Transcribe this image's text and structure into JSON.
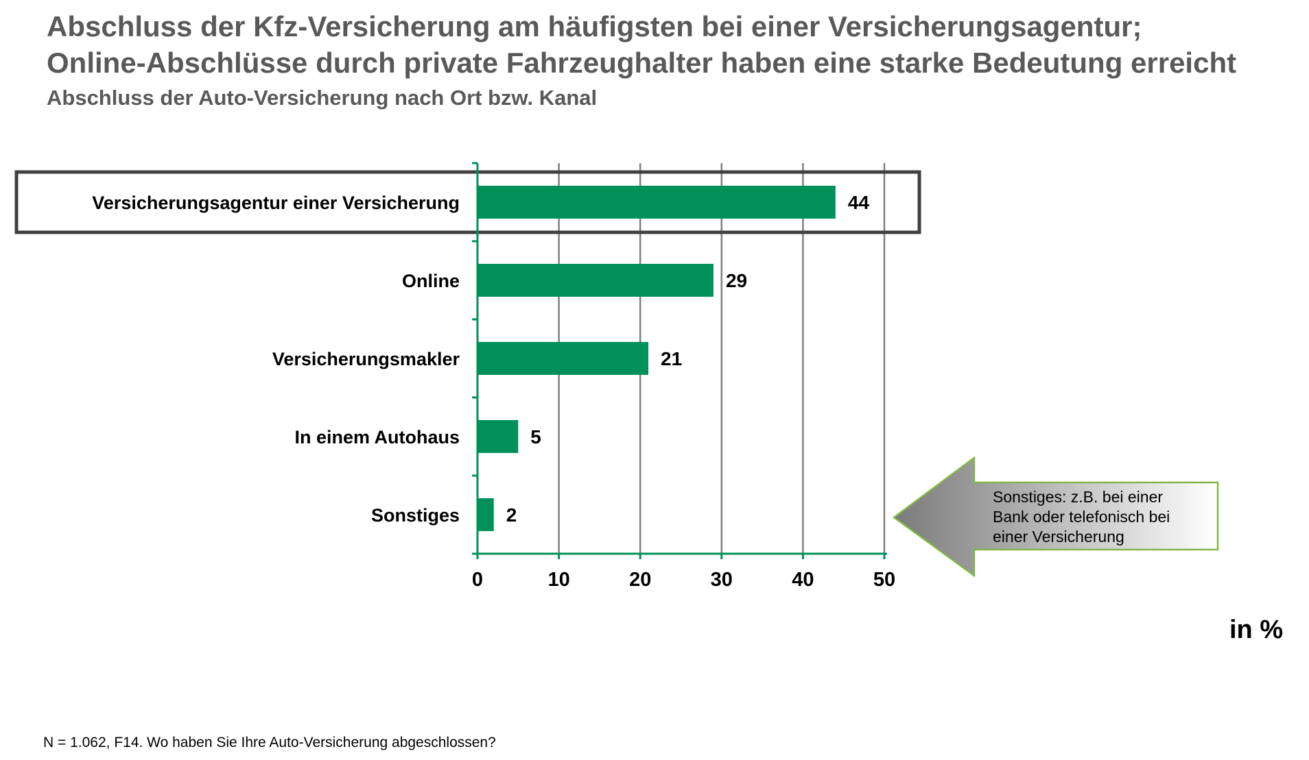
{
  "header": {
    "title_line1": "Abschluss der Kfz-Versicherung am häufigsten bei einer Versicherungsagentur;",
    "title_line2": "Online-Abschlüsse durch private Fahrzeughalter haben eine starke Bedeutung erreicht",
    "subtitle": "Abschluss der Auto-Versicherung nach Ort bzw. Kanal"
  },
  "chart_data": {
    "type": "bar",
    "orientation": "horizontal",
    "title": "Abschluss der Auto-Versicherung nach Ort bzw. Kanal",
    "categories": [
      "Versicherungsagentur einer Versicherung",
      "Online",
      "Versicherungsmakler",
      "In einem Autohaus",
      "Sonstiges"
    ],
    "values": [
      44,
      29,
      21,
      5,
      2
    ],
    "value_labels": [
      "44",
      "29",
      "21",
      "5",
      "2"
    ],
    "highlighted_category": "Versicherungsagentur einer Versicherung",
    "xlim": [
      0,
      50
    ],
    "xticks": [
      0,
      10,
      20,
      30,
      40,
      50
    ],
    "xlabel": "in %",
    "grid": true,
    "bar_color": "#00915A",
    "axis_color": "#00915A",
    "grid_color": "#7F7F7F"
  },
  "annotation": {
    "lines": [
      "Sonstiges: z.B. bei einer",
      "Bank oder telefonisch bei",
      "einer Versicherung"
    ],
    "border_color": "#7FB942"
  },
  "footnote": "N = 1.062, F14. Wo haben Sie Ihre Auto-Versicherung abgeschlossen?"
}
